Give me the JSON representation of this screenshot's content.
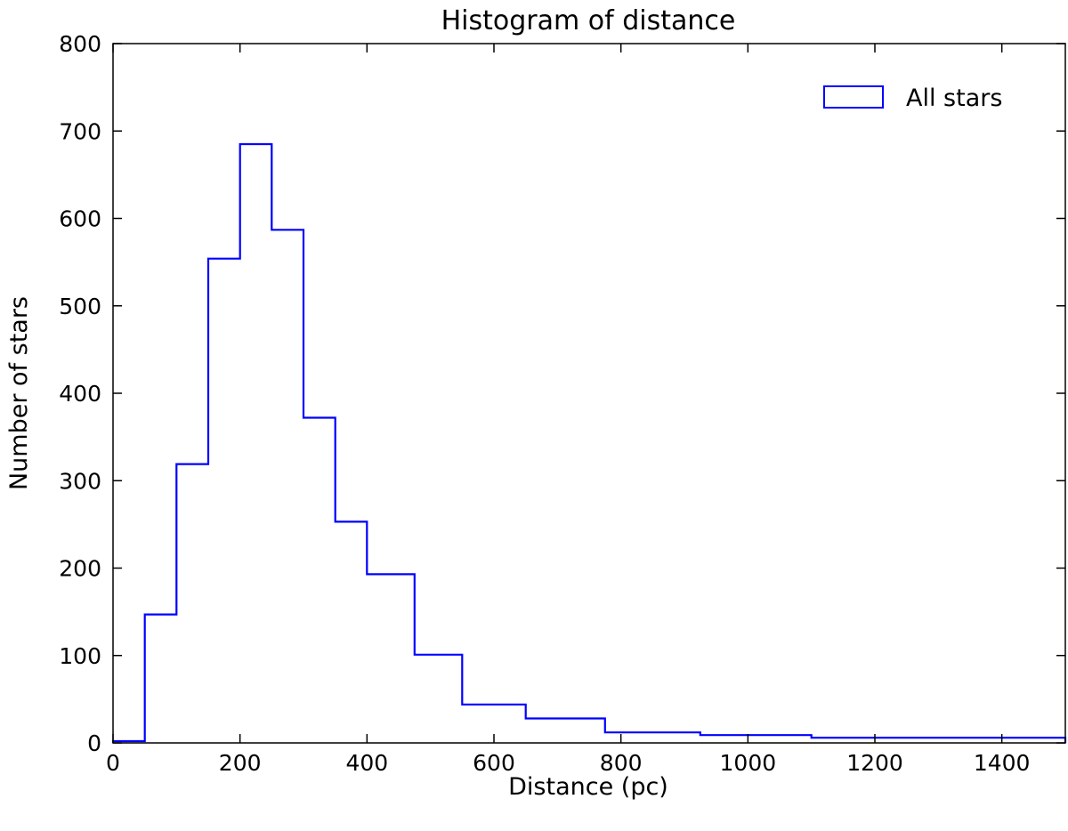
{
  "chart_data": {
    "type": "histogram",
    "title": "Histogram of distance",
    "xlabel": "Distance (pc)",
    "ylabel": "Number of stars",
    "xlim": [
      0,
      1500
    ],
    "ylim": [
      0,
      800
    ],
    "xticks": [
      0,
      200,
      400,
      600,
      800,
      1000,
      1200,
      1400
    ],
    "yticks": [
      0,
      100,
      200,
      300,
      400,
      500,
      600,
      700,
      800
    ],
    "grid": false,
    "legend": {
      "position": "top-right",
      "entries": [
        "All stars"
      ]
    },
    "series": [
      {
        "name": "All stars",
        "color": "#0000ff",
        "histtype": "step",
        "bin_edges": [
          0,
          50,
          100,
          150,
          200,
          250,
          300,
          350,
          400,
          475,
          550,
          650,
          775,
          925,
          1100,
          1500
        ],
        "counts": [
          2,
          147,
          319,
          554,
          685,
          587,
          372,
          253,
          193,
          101,
          44,
          28,
          12,
          9,
          6
        ]
      }
    ]
  }
}
